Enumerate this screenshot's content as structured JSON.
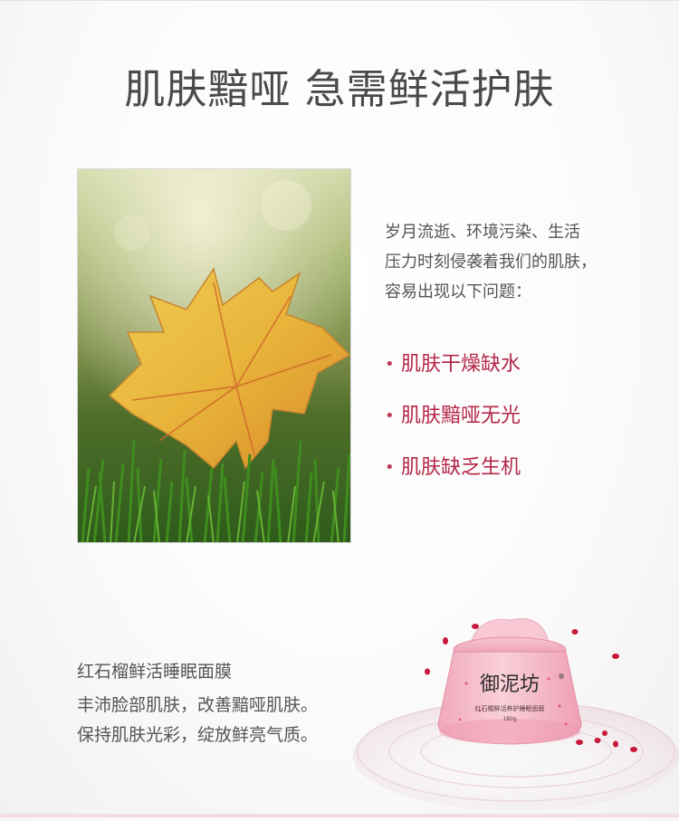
{
  "headline": "肌肤黯哑 急需鲜活护肤",
  "intro": {
    "line1": "岁月流逝、环境污染、生活",
    "line2": "压力时刻侵袭着我们的肌肤，",
    "line3": "容易出现以下问题："
  },
  "bullets": [
    {
      "marker": "•",
      "text": "肌肤干燥缺水"
    },
    {
      "marker": "•",
      "text": "肌肤黯哑无光"
    },
    {
      "marker": "•",
      "text": "肌肤缺乏生机"
    }
  ],
  "product": {
    "title": "红石榴鲜活睡眠面膜",
    "desc_line1": "丰沛脸部肌肤，改善黯哑肌肤。",
    "desc_line2": "保持肌肤光彩，绽放鲜亮气质。",
    "brand": "御泥坊",
    "registered": "®",
    "jar_label": "红石榴鲜活养护睡眠面膜",
    "weight": "180g"
  },
  "colors": {
    "accent": "#b52747",
    "jar_pink": "#f3b3c2",
    "text": "#555555"
  }
}
